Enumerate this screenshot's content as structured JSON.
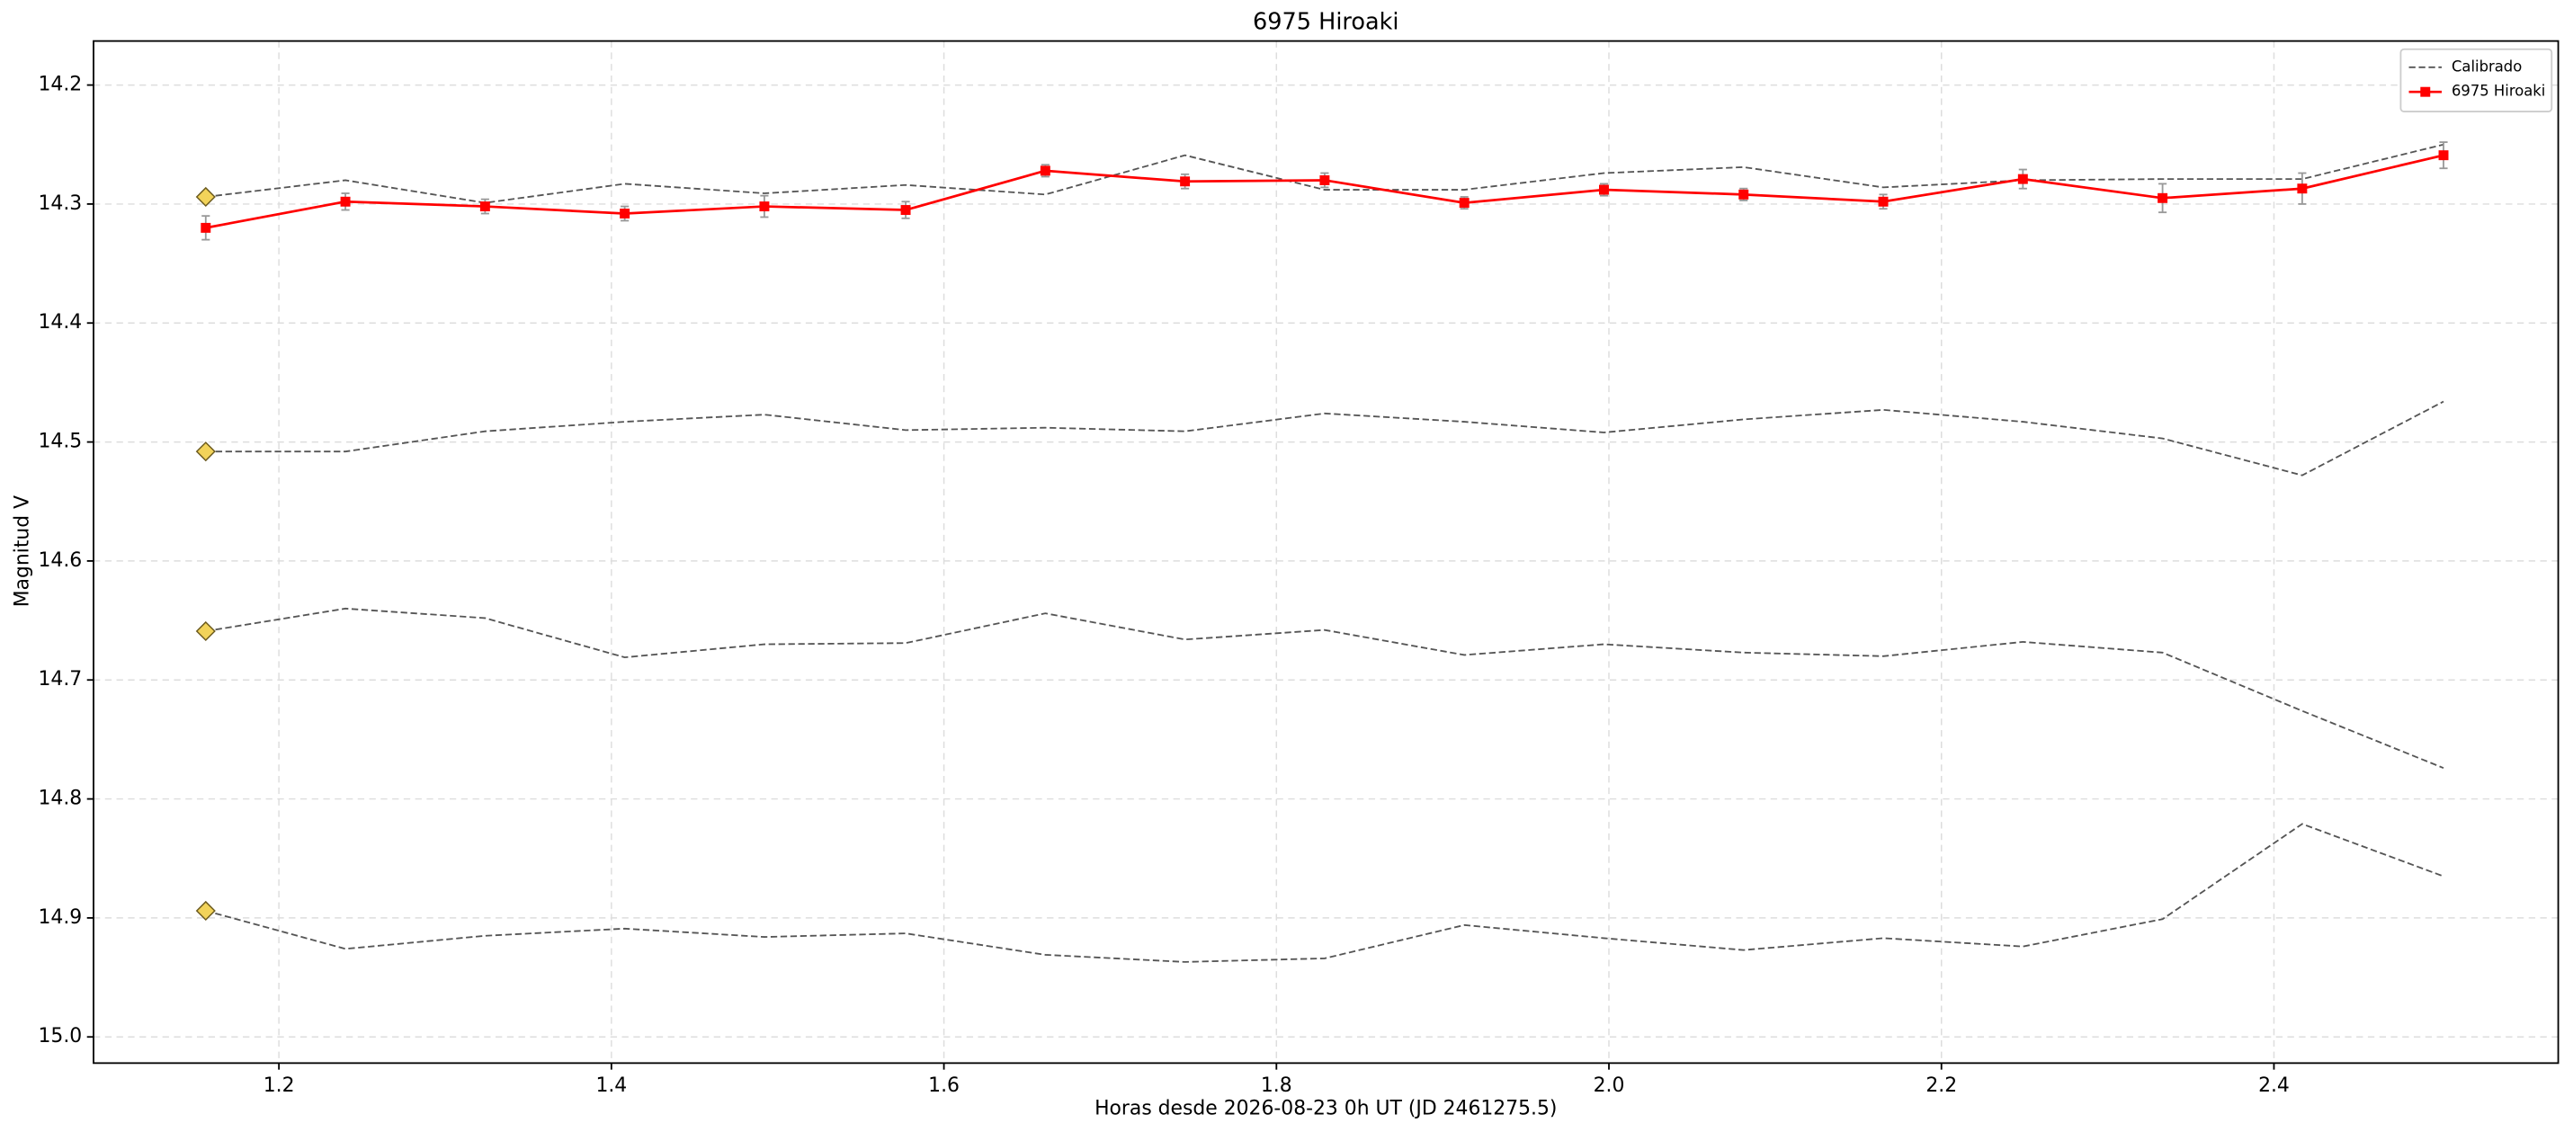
{
  "chart_data": {
    "type": "line",
    "title": "6975 Hiroaki",
    "xlabel": "Horas desde 2026-08-23 0h UT (JD 2461275.5)",
    "ylabel": "Magnitud V",
    "x": [
      1.156,
      1.24,
      1.324,
      1.408,
      1.492,
      1.577,
      1.661,
      1.745,
      1.829,
      1.913,
      1.997,
      2.081,
      2.165,
      2.249,
      2.333,
      2.417,
      2.502
    ],
    "xlim": [
      1.0885,
      2.571
    ],
    "xticks": [
      1.2,
      1.4,
      1.6,
      1.8,
      {
        "value": 2,
        "label": "2.0"
      },
      2.2,
      2.4
    ],
    "ylim": [
      14.163,
      15.022
    ],
    "yticks": [
      14.2,
      14.3,
      14.4,
      14.5,
      14.6,
      14.7,
      14.8,
      14.9,
      {
        "value": 15,
        "label": "15.0"
      }
    ],
    "y_inverted": true,
    "grid": true,
    "legend": "upper right",
    "reference": {
      "name": "Calibrado",
      "color": "#555555",
      "marker_color": "#f2d35a",
      "lines": [
        [
          14.294,
          14.28,
          14.299,
          14.283,
          14.291,
          14.284,
          14.292,
          14.259,
          14.288,
          14.288,
          14.274,
          14.269,
          14.286,
          14.28,
          14.279,
          14.279,
          14.25
        ],
        [
          14.508,
          14.508,
          14.491,
          14.483,
          14.477,
          14.49,
          14.488,
          14.491,
          14.476,
          14.483,
          14.492,
          14.481,
          14.473,
          14.483,
          14.497,
          14.528,
          14.466
        ],
        [
          14.659,
          14.64,
          14.648,
          14.681,
          14.67,
          14.669,
          14.644,
          14.666,
          14.658,
          14.679,
          14.67,
          14.677,
          14.68,
          14.668,
          14.677,
          14.726,
          14.774
        ],
        [
          14.894,
          14.926,
          14.915,
          14.909,
          14.916,
          14.913,
          14.931,
          14.937,
          14.934,
          14.906,
          14.917,
          14.927,
          14.917,
          14.924,
          14.901,
          14.821,
          14.865
        ]
      ]
    },
    "series": [
      {
        "name": "6975 Hiroaki",
        "color": "#ff0000",
        "values": [
          14.32,
          14.298,
          14.302,
          14.308,
          14.302,
          14.305,
          14.272,
          14.281,
          14.28,
          14.299,
          14.288,
          14.292,
          14.298,
          14.279,
          14.295,
          14.287,
          14.259
        ],
        "errors": [
          0.01,
          0.007,
          0.006,
          0.006,
          0.009,
          0.007,
          0.005,
          0.006,
          0.006,
          0.005,
          0.005,
          0.005,
          0.006,
          0.008,
          0.012,
          0.013,
          0.011
        ]
      }
    ]
  }
}
